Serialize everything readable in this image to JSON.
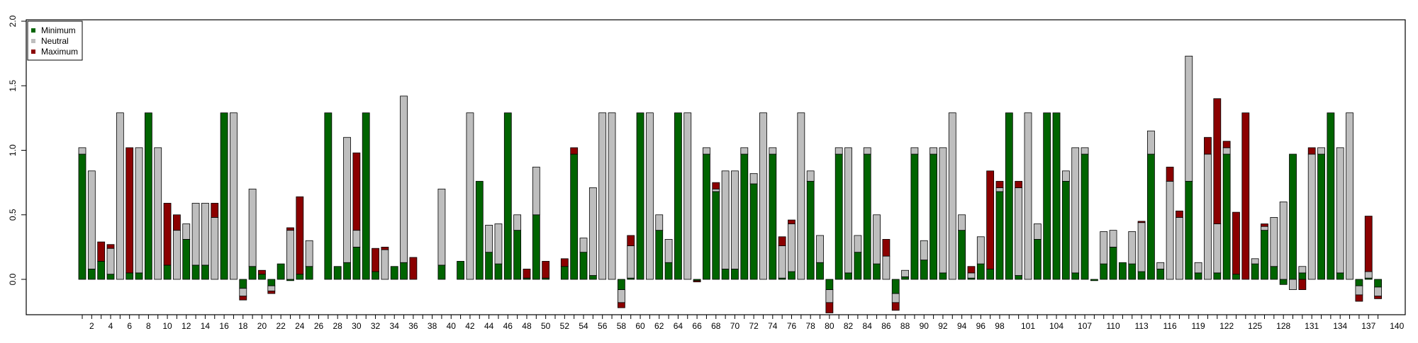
{
  "chart_data": {
    "type": "bar",
    "stacked": true,
    "title": "",
    "xlabel": "",
    "ylabel": "",
    "ylim": [
      -0.3,
      2.0
    ],
    "yticks": [
      "0.0",
      "0.5",
      "1.0",
      "1.5",
      "2.0"
    ],
    "grid": false,
    "legend": "top-left",
    "colors": {
      "Minimum": "#006400",
      "Neutral": "#bebebe",
      "Maximum": "#8b0000"
    },
    "x_tick_labels": [
      "2",
      "4",
      "6",
      "8",
      "10",
      "12",
      "14",
      "16",
      "18",
      "20",
      "22",
      "24",
      "26",
      "28",
      "30",
      "32",
      "34",
      "36",
      "38",
      "40",
      "42",
      "44",
      "46",
      "48",
      "50",
      "52",
      "54",
      "56",
      "58",
      "60",
      "62",
      "64",
      "66",
      "68",
      "70",
      "72",
      "74",
      "76",
      "78",
      "80",
      "82",
      "84",
      "86",
      "88",
      "90",
      "92",
      "94",
      "96",
      "98",
      "101",
      "104",
      "107",
      "110",
      "113",
      "116",
      "119",
      "122",
      "125",
      "128",
      "131",
      "134",
      "137",
      "140"
    ],
    "x_tick_positions": [
      2,
      4,
      6,
      8,
      10,
      12,
      14,
      16,
      18,
      20,
      22,
      24,
      26,
      28,
      30,
      32,
      34,
      36,
      38,
      40,
      42,
      44,
      46,
      48,
      50,
      52,
      54,
      56,
      58,
      60,
      62,
      64,
      66,
      68,
      70,
      72,
      74,
      76,
      78,
      80,
      82,
      84,
      86,
      88,
      90,
      92,
      94,
      96,
      98,
      101,
      104,
      107,
      110,
      113,
      116,
      119,
      122,
      125,
      128,
      131,
      134,
      137,
      140
    ],
    "series": [
      {
        "name": "Minimum",
        "values": [
          0.97,
          0.08,
          0.14,
          0.04,
          0.0,
          0.05,
          0.05,
          1.29,
          0.0,
          0.11,
          0.0,
          0.31,
          0.11,
          0.11,
          0.0,
          1.29,
          0.0,
          -0.07,
          0.1,
          0.04,
          -0.05,
          0.12,
          -0.01,
          0.04,
          0.1,
          0.0,
          1.29,
          0.1,
          0.13,
          0.25,
          1.29,
          0.06,
          0.0,
          0.1,
          0.13,
          0.0,
          0.0,
          0.0,
          0.11,
          0.0,
          0.14,
          0.0,
          0.76,
          0.21,
          0.12,
          1.29,
          0.38,
          0.01,
          0.5,
          0.01,
          0.0,
          0.1,
          0.97,
          0.21,
          0.03,
          0.0,
          0.0,
          -0.08,
          0.01,
          1.29,
          0.0,
          0.38,
          0.13,
          1.29,
          0.0,
          -0.01,
          0.97,
          0.68,
          0.08,
          0.08,
          0.97,
          0.74,
          0.0,
          0.97,
          0.01,
          0.06,
          0.0,
          0.76,
          0.13,
          -0.08,
          0.97,
          0.05,
          0.21,
          0.97,
          0.12,
          0.0,
          -0.11,
          0.02,
          0.97,
          0.15,
          0.97,
          0.05,
          0.0,
          0.38,
          0.01,
          0.12,
          0.08,
          0.68,
          1.29,
          0.03,
          0.0,
          0.31,
          1.29,
          1.29,
          0.76,
          0.05,
          0.97,
          -0.01,
          0.12,
          0.25,
          0.13,
          0.12,
          0.06,
          0.97,
          0.08,
          0.0,
          0.0,
          0.76,
          0.05,
          0.0,
          0.05,
          0.97,
          0.04,
          0.0,
          0.12,
          0.38,
          0.1,
          -0.04,
          0.97,
          0.05,
          0.0,
          0.97,
          1.29,
          0.05,
          0.0,
          -0.05,
          0.01,
          -0.06
        ]
      },
      {
        "name": "Neutral",
        "values": [
          0.05,
          0.76,
          0.0,
          0.2,
          1.29,
          0.0,
          0.97,
          0.0,
          1.02,
          0.0,
          0.38,
          0.12,
          0.48,
          0.48,
          0.48,
          0.0,
          1.29,
          -0.06,
          0.6,
          0.0,
          -0.04,
          0.0,
          0.38,
          0.0,
          0.2,
          0.0,
          0.0,
          0.0,
          0.97,
          0.13,
          0.0,
          0.0,
          0.23,
          0.0,
          1.29,
          0.0,
          0.0,
          0.0,
          0.59,
          0.0,
          0.0,
          1.29,
          0.0,
          0.21,
          0.31,
          0.0,
          0.12,
          0.0,
          0.37,
          0.0,
          0.0,
          0.0,
          0.0,
          0.11,
          0.68,
          1.29,
          1.29,
          -0.1,
          0.25,
          0.0,
          1.29,
          0.12,
          0.18,
          0.0,
          1.29,
          0.0,
          0.05,
          0.02,
          0.76,
          0.76,
          0.05,
          0.08,
          1.29,
          0.05,
          0.25,
          0.37,
          1.29,
          0.08,
          0.21,
          -0.1,
          0.05,
          0.97,
          0.13,
          0.05,
          0.38,
          0.18,
          -0.07,
          0.05,
          0.05,
          0.15,
          0.05,
          0.97,
          1.29,
          0.12,
          0.04,
          0.21,
          0.0,
          0.03,
          0.0,
          0.68,
          1.29,
          0.12,
          0.0,
          0.0,
          0.08,
          0.97,
          0.05,
          0.0,
          0.25,
          0.13,
          0.0,
          0.25,
          0.38,
          0.18,
          0.05,
          0.76,
          0.48,
          0.97,
          0.08,
          0.97,
          0.38,
          0.05,
          0.0,
          0.0,
          0.04,
          0.03,
          0.38,
          0.6,
          -0.08,
          0.05,
          0.97,
          0.05,
          0.0,
          0.97,
          1.29,
          -0.07,
          0.05,
          -0.07
        ]
      },
      {
        "name": "Maximum",
        "values": [
          0.0,
          0.0,
          0.15,
          0.03,
          0.0,
          0.97,
          0.0,
          0.0,
          0.0,
          0.48,
          0.12,
          0.0,
          0.0,
          0.0,
          0.11,
          0.0,
          0.0,
          -0.03,
          0.0,
          0.03,
          -0.02,
          0.0,
          0.02,
          0.6,
          0.0,
          0.0,
          0.0,
          0.0,
          0.0,
          0.6,
          0.0,
          0.18,
          0.02,
          0.0,
          0.0,
          0.17,
          0.0,
          0.0,
          0.0,
          0.0,
          0.0,
          0.0,
          0.0,
          0.0,
          0.0,
          0.0,
          0.0,
          0.07,
          0.0,
          0.13,
          0.0,
          0.06,
          0.05,
          0.0,
          0.0,
          0.0,
          0.0,
          -0.04,
          0.08,
          0.0,
          0.0,
          0.0,
          0.0,
          0.0,
          0.0,
          -0.01,
          0.0,
          0.05,
          0.0,
          0.0,
          0.0,
          0.0,
          0.0,
          0.0,
          0.07,
          0.03,
          0.0,
          0.0,
          0.0,
          -0.08,
          0.0,
          0.0,
          0.0,
          0.0,
          0.0,
          0.13,
          -0.06,
          0.0,
          0.0,
          0.0,
          0.0,
          0.0,
          0.0,
          0.0,
          0.05,
          0.0,
          0.76,
          0.05,
          0.0,
          0.05,
          0.0,
          0.0,
          0.0,
          0.0,
          0.0,
          0.0,
          0.0,
          0.0,
          0.0,
          0.0,
          0.0,
          0.0,
          0.01,
          0.0,
          0.0,
          0.11,
          0.05,
          0.0,
          0.0,
          0.13,
          0.97,
          0.05,
          0.48,
          1.29,
          0.0,
          0.02,
          0.0,
          0.0,
          0.0,
          -0.08,
          0.05,
          0.0,
          0.0,
          0.0,
          0.0,
          -0.05,
          0.43,
          -0.02
        ]
      }
    ]
  },
  "legend": {
    "items": [
      {
        "label": "Minimum",
        "color": "#006400"
      },
      {
        "label": "Neutral",
        "color": "#bebebe"
      },
      {
        "label": "Maximum",
        "color": "#8b0000"
      }
    ]
  }
}
